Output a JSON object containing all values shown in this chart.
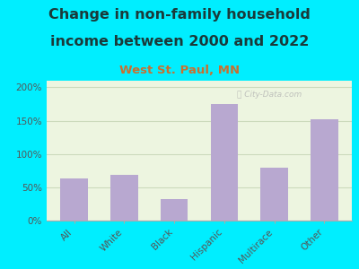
{
  "categories": [
    "All",
    "White",
    "Black",
    "Hispanic",
    "Multirace",
    "Other"
  ],
  "values": [
    63,
    68,
    32,
    175,
    80,
    152
  ],
  "bar_color": "#b8a8d0",
  "title_line1": "Change in non-family household",
  "title_line2": "income between 2000 and 2022",
  "subtitle": "West St. Paul, MN",
  "title_color": "#1a3a3a",
  "subtitle_color": "#c87030",
  "background_outer": "#00eeff",
  "background_plot": "#edf5e0",
  "watermark": "Ⓣ City-Data.com",
  "ylim": [
    0,
    210
  ],
  "yticks": [
    0,
    50,
    100,
    150,
    200
  ],
  "ytick_labels": [
    "0%",
    "50%",
    "100%",
    "150%",
    "200%"
  ],
  "grid_color": "#ccdabc",
  "tick_color": "#555555",
  "title_fontsize": 11.5,
  "subtitle_fontsize": 9.5,
  "axis_label_fontsize": 7.5
}
